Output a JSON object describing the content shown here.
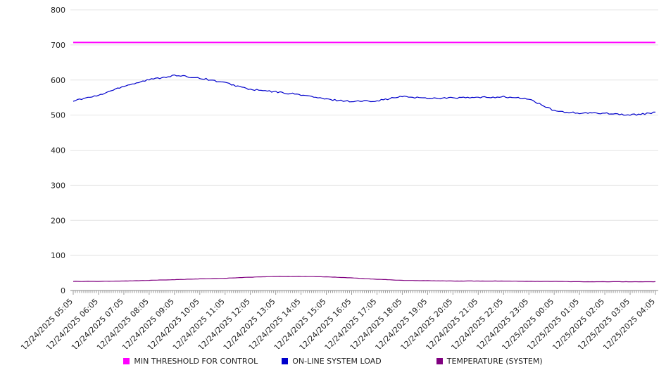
{
  "chart_data": {
    "type": "line",
    "title": "",
    "xlabel": "",
    "ylabel": "",
    "ylim": [
      0,
      800
    ],
    "yticks": [
      0,
      100,
      200,
      300,
      400,
      500,
      600,
      700,
      800
    ],
    "grid": true,
    "legend_position": "bottom",
    "x": [
      "12/24/2025 05:05",
      "12/24/2025 06:05",
      "12/24/2025 07:05",
      "12/24/2025 08:05",
      "12/24/2025 09:05",
      "12/24/2025 10:05",
      "12/24/2025 11:05",
      "12/24/2025 12:05",
      "12/24/2025 13:05",
      "12/24/2025 14:05",
      "12/24/2025 15:05",
      "12/24/2025 16:05",
      "12/24/2025 17:05",
      "12/24/2025 18:05",
      "12/24/2025 19:05",
      "12/24/2025 20:05",
      "12/24/2025 21:05",
      "12/24/2025 22:05",
      "12/24/2025 23:05",
      "12/25/2025 00:05",
      "12/25/2025 01:05",
      "12/25/2025 02:05",
      "12/25/2025 03:05",
      "12/25/2025 04:05"
    ],
    "series": [
      {
        "id": "min-threshold-for-control",
        "name": "MIN THRESHOLD FOR CONTROL",
        "color": "#ff00ff",
        "values": [
          707,
          707,
          707,
          707,
          707,
          707,
          707,
          707,
          707,
          707,
          707,
          707,
          707,
          707,
          707,
          707,
          707,
          707,
          707,
          707,
          707,
          707,
          707,
          707
        ]
      },
      {
        "id": "on-line-system-load",
        "name": "ON-LINE SYSTEM LOAD",
        "color": "#0000cc",
        "values": [
          541,
          556,
          583,
          601,
          613,
          606,
          592,
          573,
          566,
          558,
          545,
          539,
          541,
          553,
          548,
          549,
          550,
          552,
          546,
          512,
          505,
          506,
          500,
          507
        ]
      },
      {
        "id": "temperature-system",
        "name": "TEMPERATURE (SYSTEM)",
        "color": "#800080",
        "values": [
          26,
          26,
          27,
          29,
          31,
          33,
          35,
          38,
          40,
          40,
          39,
          36,
          32,
          29,
          28,
          27,
          27,
          27,
          26,
          26,
          25,
          25,
          25,
          25
        ]
      }
    ]
  }
}
